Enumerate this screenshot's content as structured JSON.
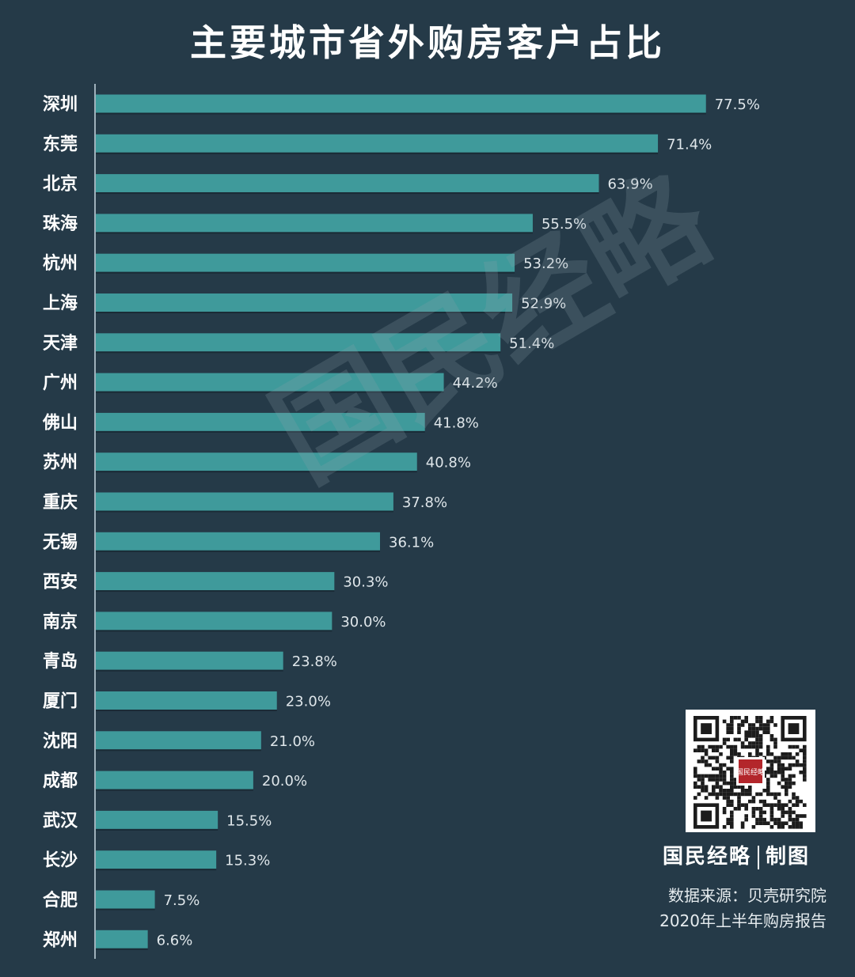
{
  "chart_data": {
    "type": "bar",
    "orientation": "horizontal",
    "title": "主要城市省外购房客户占比",
    "categories": [
      "深圳",
      "东莞",
      "北京",
      "珠海",
      "杭州",
      "上海",
      "天津",
      "广州",
      "佛山",
      "苏州",
      "重庆",
      "无锡",
      "西安",
      "南京",
      "青岛",
      "厦门",
      "沈阳",
      "成都",
      "武汉",
      "长沙",
      "合肥",
      "郑州"
    ],
    "values": [
      77.5,
      71.4,
      63.9,
      55.5,
      53.2,
      52.9,
      51.4,
      44.2,
      41.8,
      40.8,
      37.8,
      36.1,
      30.3,
      30.0,
      23.8,
      23.0,
      21.0,
      20.0,
      15.5,
      15.3,
      7.5,
      6.6
    ],
    "value_labels": [
      "77.5%",
      "71.4%",
      "63.9%",
      "55.5%",
      "53.2%",
      "52.9%",
      "51.4%",
      "44.2%",
      "41.8%",
      "40.8%",
      "37.8%",
      "36.1%",
      "30.3%",
      "30.0%",
      "23.8%",
      "23.0%",
      "21.0%",
      "20.0%",
      "15.5%",
      "15.3%",
      "7.5%",
      "6.6%"
    ],
    "unit": "%",
    "xlim": [
      0,
      80
    ],
    "grid": false,
    "bar_color": "#3f9a9b"
  },
  "watermark": "国民经略",
  "branding": {
    "name": "国民经略",
    "credit": "制图",
    "logo_text": "国民经略"
  },
  "source": {
    "line1": "数据来源：贝壳研究院",
    "line2": "2020年上半年购房报告"
  },
  "colors": {
    "background": "#253a48",
    "bar": "#3f9a9b",
    "text": "#ffffff"
  }
}
